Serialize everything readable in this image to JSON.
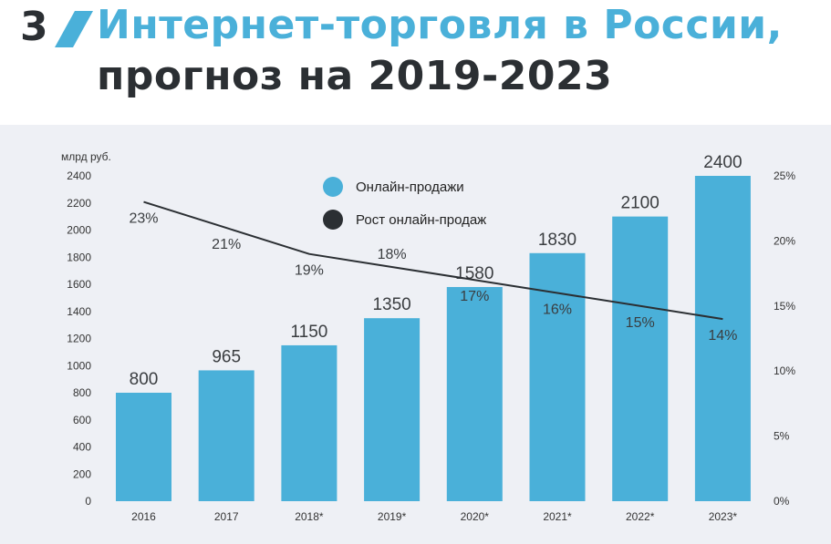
{
  "header": {
    "number": "3",
    "title_line1": "Интернет-торговля в России,",
    "title_line2": "прогноз на 2019-2023"
  },
  "colors": {
    "accent": "#4ab0d9",
    "dark": "#2b2f33",
    "panel": "#eef0f5"
  },
  "chart_data": {
    "type": "bar",
    "title": "",
    "ylabel": "млрд руб.",
    "categories": [
      "2016",
      "2017",
      "2018*",
      "2019*",
      "2020*",
      "2021*",
      "2022*",
      "2023*"
    ],
    "ylim": [
      0,
      2400
    ],
    "yticks": [
      "0",
      "200",
      "400",
      "600",
      "800",
      "1000",
      "1200",
      "1400",
      "1600",
      "1800",
      "2000",
      "2200",
      "2400"
    ],
    "y2lim": [
      0,
      25
    ],
    "y2ticks": [
      "0%",
      "5%",
      "10%",
      "15%",
      "20%",
      "25%"
    ],
    "legend": {
      "placement": "top-center"
    },
    "series": [
      {
        "name": "Онлайн-продажи",
        "type": "bar",
        "color": "#4ab0d9",
        "values": [
          800,
          965,
          1150,
          1350,
          1580,
          1830,
          2100,
          2400
        ],
        "labels": [
          "800",
          "965",
          "1150",
          "1350",
          "1580",
          "1830",
          "2100",
          "2400"
        ]
      },
      {
        "name": "Рост онлайн-продаж",
        "type": "line",
        "axis": "right",
        "color": "#2b2f33",
        "values": [
          23,
          21,
          19,
          18,
          17,
          16,
          15,
          14
        ],
        "labels": [
          "23%",
          "21%",
          "19%",
          "18%",
          "17%",
          "16%",
          "15%",
          "14%"
        ]
      }
    ]
  }
}
